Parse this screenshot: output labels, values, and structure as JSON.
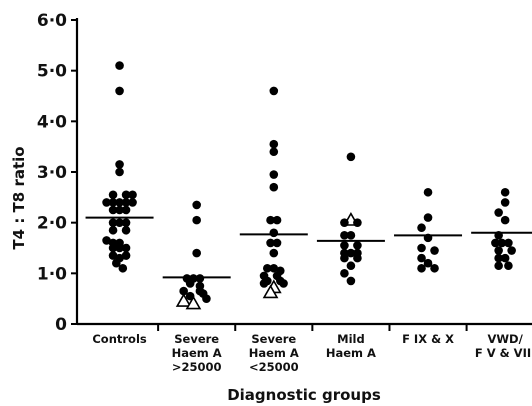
{
  "chart_data": {
    "type": "scatter",
    "ylabel": "T4 : T8 ratio",
    "xlabel": "Diagnostic groups",
    "ylim": [
      0,
      6
    ],
    "yticks": [
      "0",
      "1·0",
      "2·0",
      "3·0",
      "4·0",
      "5·0",
      "6·0"
    ],
    "grid": false,
    "categories": [
      {
        "lines": [
          "Controls"
        ]
      },
      {
        "lines": [
          "Severe",
          "Haem A",
          ">25000"
        ]
      },
      {
        "lines": [
          "Severe",
          "Haem A",
          "<25000"
        ]
      },
      {
        "lines": [
          "Mild",
          "Haem A"
        ]
      },
      {
        "lines": [
          "F IX & X"
        ]
      },
      {
        "lines": [
          "VWD/",
          "F V & VIII"
        ]
      }
    ],
    "groups": [
      {
        "median": 2.1,
        "points": [
          {
            "dx": 0,
            "y": 5.1
          },
          {
            "dx": 0,
            "y": 4.6
          },
          {
            "dx": 0,
            "y": 3.15
          },
          {
            "dx": 0,
            "y": 3.0
          },
          {
            "dx": -1,
            "y": 2.55
          },
          {
            "dx": 1,
            "y": 2.55
          },
          {
            "dx": 2,
            "y": 2.55
          },
          {
            "dx": -2,
            "y": 2.4
          },
          {
            "dx": -1,
            "y": 2.4
          },
          {
            "dx": 0,
            "y": 2.4
          },
          {
            "dx": 1,
            "y": 2.4
          },
          {
            "dx": 2,
            "y": 2.4
          },
          {
            "dx": -1,
            "y": 2.25
          },
          {
            "dx": 0,
            "y": 2.25
          },
          {
            "dx": 1,
            "y": 2.25
          },
          {
            "dx": -1,
            "y": 2.0
          },
          {
            "dx": 0,
            "y": 2.0
          },
          {
            "dx": 1,
            "y": 2.0
          },
          {
            "dx": -1,
            "y": 1.85
          },
          {
            "dx": 1,
            "y": 1.85
          },
          {
            "dx": -2,
            "y": 1.65
          },
          {
            "dx": -1,
            "y": 1.6
          },
          {
            "dx": 0,
            "y": 1.6
          },
          {
            "dx": -1,
            "y": 1.5
          },
          {
            "dx": 0,
            "y": 1.5
          },
          {
            "dx": 1,
            "y": 1.5
          },
          {
            "dx": -1,
            "y": 1.35
          },
          {
            "dx": 0,
            "y": 1.3
          },
          {
            "dx": 1,
            "y": 1.35
          },
          {
            "dx": -0.5,
            "y": 1.2
          },
          {
            "dx": 0.5,
            "y": 1.1
          }
        ]
      },
      {
        "median": 0.92,
        "points": [
          {
            "dx": 0,
            "y": 2.35
          },
          {
            "dx": 0,
            "y": 2.05
          },
          {
            "dx": 0,
            "y": 1.4
          },
          {
            "dx": -1.5,
            "y": 0.9
          },
          {
            "dx": -0.5,
            "y": 0.9
          },
          {
            "dx": 0.5,
            "y": 0.9
          },
          {
            "dx": -1,
            "y": 0.8
          },
          {
            "dx": 0.5,
            "y": 0.75
          },
          {
            "dx": -2,
            "y": 0.65
          },
          {
            "dx": 0.5,
            "y": 0.65
          },
          {
            "dx": 1,
            "y": 0.6
          },
          {
            "dx": -1,
            "y": 0.55
          },
          {
            "dx": 1.5,
            "y": 0.5
          },
          {
            "dx": -2,
            "y": 0.45,
            "open": true
          },
          {
            "dx": -0.5,
            "y": 0.4,
            "open": true
          }
        ]
      },
      {
        "median": 1.77,
        "points": [
          {
            "dx": 0,
            "y": 4.6
          },
          {
            "dx": 0,
            "y": 3.55
          },
          {
            "dx": 0,
            "y": 3.4
          },
          {
            "dx": 0,
            "y": 2.95
          },
          {
            "dx": 0,
            "y": 2.7
          },
          {
            "dx": -0.5,
            "y": 2.05
          },
          {
            "dx": 0.5,
            "y": 2.05
          },
          {
            "dx": 0,
            "y": 1.8
          },
          {
            "dx": -0.5,
            "y": 1.6
          },
          {
            "dx": 0.5,
            "y": 1.6
          },
          {
            "dx": 0,
            "y": 1.4
          },
          {
            "dx": -1,
            "y": 1.1
          },
          {
            "dx": 0,
            "y": 1.1
          },
          {
            "dx": 1,
            "y": 1.05
          },
          {
            "dx": -1.5,
            "y": 0.95
          },
          {
            "dx": 0.5,
            "y": 0.95
          },
          {
            "dx": -1,
            "y": 0.85
          },
          {
            "dx": 1,
            "y": 0.85
          },
          {
            "dx": -1.5,
            "y": 0.8
          },
          {
            "dx": 1.5,
            "y": 0.8
          },
          {
            "dx": 0,
            "y": 0.72,
            "open": true
          },
          {
            "dx": -0.5,
            "y": 0.62,
            "open": true
          }
        ]
      },
      {
        "median": 1.64,
        "points": [
          {
            "dx": 0,
            "y": 3.3
          },
          {
            "dx": 0,
            "y": 2.05,
            "open": true
          },
          {
            "dx": -1,
            "y": 2.0
          },
          {
            "dx": 1,
            "y": 2.0
          },
          {
            "dx": -1,
            "y": 1.75
          },
          {
            "dx": 0,
            "y": 1.75
          },
          {
            "dx": -1,
            "y": 1.55
          },
          {
            "dx": 1,
            "y": 1.55
          },
          {
            "dx": -1,
            "y": 1.4
          },
          {
            "dx": 0,
            "y": 1.4
          },
          {
            "dx": 1,
            "y": 1.4
          },
          {
            "dx": -1,
            "y": 1.3
          },
          {
            "dx": 1,
            "y": 1.3
          },
          {
            "dx": 0,
            "y": 1.15
          },
          {
            "dx": -1,
            "y": 1.0
          },
          {
            "dx": 0,
            "y": 0.85
          }
        ]
      },
      {
        "median": 1.75,
        "points": [
          {
            "dx": 0,
            "y": 2.6
          },
          {
            "dx": 0,
            "y": 2.1
          },
          {
            "dx": -1,
            "y": 1.9
          },
          {
            "dx": 0,
            "y": 1.7
          },
          {
            "dx": -1,
            "y": 1.5
          },
          {
            "dx": 1,
            "y": 1.45
          },
          {
            "dx": -1,
            "y": 1.3
          },
          {
            "dx": 0,
            "y": 1.2
          },
          {
            "dx": -1,
            "y": 1.1
          },
          {
            "dx": 1,
            "y": 1.1
          }
        ]
      },
      {
        "median": 1.8,
        "points": [
          {
            "dx": 0,
            "y": 2.6
          },
          {
            "dx": 0,
            "y": 2.4
          },
          {
            "dx": -1,
            "y": 2.2
          },
          {
            "dx": 0,
            "y": 2.05
          },
          {
            "dx": -1,
            "y": 1.75
          },
          {
            "dx": -1.5,
            "y": 1.6
          },
          {
            "dx": -0.5,
            "y": 1.6
          },
          {
            "dx": 0.5,
            "y": 1.6
          },
          {
            "dx": -1,
            "y": 1.45
          },
          {
            "dx": 1,
            "y": 1.45
          },
          {
            "dx": -1,
            "y": 1.3
          },
          {
            "dx": 0,
            "y": 1.3
          },
          {
            "dx": -1,
            "y": 1.15
          },
          {
            "dx": 0.5,
            "y": 1.15
          }
        ]
      }
    ]
  }
}
